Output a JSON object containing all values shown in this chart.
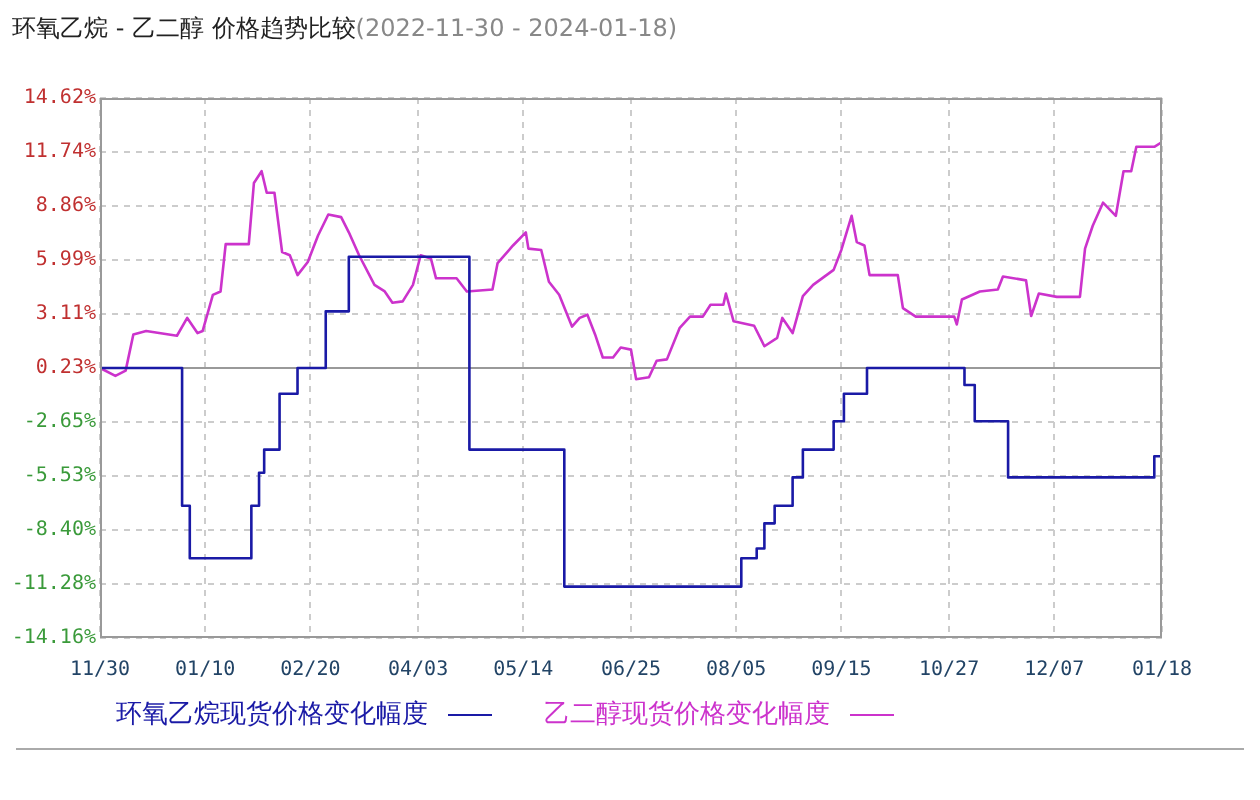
{
  "chart_data": {
    "type": "line",
    "title": "环氧乙烷 - 乙二醇 价格趋势比较",
    "subtitle": "(2022-11-30 - 2024-01-18)",
    "xlim": [
      "2022-11-30",
      "2024-01-18"
    ],
    "xticks": [
      {
        "value": "2022-11-30",
        "label": "11/30"
      },
      {
        "value": "2023-01-10",
        "label": "01/10"
      },
      {
        "value": "2023-02-20",
        "label": "02/20"
      },
      {
        "value": "2023-04-03",
        "label": "04/03"
      },
      {
        "value": "2023-05-14",
        "label": "05/14"
      },
      {
        "value": "2023-06-25",
        "label": "06/25"
      },
      {
        "value": "2023-08-05",
        "label": "08/05"
      },
      {
        "value": "2023-09-15",
        "label": "09/15"
      },
      {
        "value": "2023-10-27",
        "label": "10/27"
      },
      {
        "value": "2023-12-07",
        "label": "12/07"
      },
      {
        "value": "2024-01-18",
        "label": "01/18"
      }
    ],
    "ylim": [
      -14.16,
      14.62
    ],
    "yticks": [
      {
        "value": -14.16,
        "label": "-14.16%"
      },
      {
        "value": -11.28,
        "label": "-11.28%"
      },
      {
        "value": -8.4,
        "label": "-8.40%"
      },
      {
        "value": -5.53,
        "label": "-5.53%"
      },
      {
        "value": -2.65,
        "label": "-2.65%"
      },
      {
        "value": 0.23,
        "label": "0.23%"
      },
      {
        "value": 3.11,
        "label": "3.11%"
      },
      {
        "value": 5.99,
        "label": "5.99%"
      },
      {
        "value": 8.86,
        "label": "8.86%"
      },
      {
        "value": 11.74,
        "label": "11.74%"
      },
      {
        "value": 14.62,
        "label": "14.62%"
      }
    ],
    "grid": true,
    "legend": "bottom",
    "ref_lines": [
      {
        "axis": "y",
        "value": 0.23,
        "color": "#999999"
      }
    ],
    "series": [
      {
        "name": "环氧乙烷现货价格变化幅度",
        "type": "step",
        "color": "#1a1aa6",
        "x": [
          "2022-11-30",
          "2023-01-01",
          "2023-01-04",
          "2023-01-28",
          "2023-01-31",
          "2023-02-02",
          "2023-02-08",
          "2023-02-15",
          "2023-02-26",
          "2023-03-07",
          "2023-04-23",
          "2023-05-30",
          "2023-08-07",
          "2023-08-13",
          "2023-08-16",
          "2023-08-20",
          "2023-08-27",
          "2023-08-31",
          "2023-09-12",
          "2023-09-16",
          "2023-09-25",
          "2023-11-02",
          "2023-11-06",
          "2023-11-19",
          "2024-01-15",
          "2024-01-18"
        ],
        "values": [
          0.23,
          -7.11,
          -9.91,
          -7.11,
          -5.35,
          -4.12,
          -1.14,
          0.23,
          3.25,
          6.16,
          -4.12,
          -11.42,
          -9.91,
          -9.39,
          -8.05,
          -7.11,
          -5.6,
          -4.12,
          -2.61,
          -1.14,
          0.23,
          -0.68,
          -2.61,
          -5.6,
          -4.47,
          -4.02
        ]
      },
      {
        "name": "乙二醇现货价格变化幅度",
        "type": "line",
        "color": "#cc33cc",
        "x": [
          "2022-11-30",
          "2022-12-06",
          "2022-12-10",
          "2022-12-13",
          "2022-12-18",
          "2022-12-30",
          "2023-01-03",
          "2023-01-07",
          "2023-01-09",
          "2023-01-13",
          "2023-01-16",
          "2023-01-18",
          "2023-01-27",
          "2023-01-29",
          "2023-02-01",
          "2023-02-03",
          "2023-02-06",
          "2023-02-09",
          "2023-02-12",
          "2023-02-15",
          "2023-02-19",
          "2023-02-23",
          "2023-02-27",
          "2023-03-04",
          "2023-03-07",
          "2023-03-11",
          "2023-03-17",
          "2023-03-21",
          "2023-03-24",
          "2023-03-28",
          "2023-04-01",
          "2023-04-04",
          "2023-04-08",
          "2023-04-10",
          "2023-04-18",
          "2023-04-22",
          "2023-05-02",
          "2023-05-04",
          "2023-05-10",
          "2023-05-15",
          "2023-05-16",
          "2023-05-21",
          "2023-05-24",
          "2023-05-28",
          "2023-06-02",
          "2023-06-05",
          "2023-06-08",
          "2023-06-11",
          "2023-06-14",
          "2023-06-18",
          "2023-06-21",
          "2023-06-25",
          "2023-06-27",
          "2023-07-02",
          "2023-07-05",
          "2023-07-09",
          "2023-07-14",
          "2023-07-18",
          "2023-07-23",
          "2023-07-26",
          "2023-07-31",
          "2023-08-01",
          "2023-08-04",
          "2023-08-12",
          "2023-08-16",
          "2023-08-21",
          "2023-08-23",
          "2023-08-27",
          "2023-08-31",
          "2023-09-04",
          "2023-09-12",
          "2023-09-15",
          "2023-09-19",
          "2023-09-21",
          "2023-09-24",
          "2023-09-26",
          "2023-10-07",
          "2023-10-09",
          "2023-10-14",
          "2023-10-29",
          "2023-10-30",
          "2023-11-01",
          "2023-11-08",
          "2023-11-15",
          "2023-11-17",
          "2023-11-26",
          "2023-11-28",
          "2023-12-01",
          "2023-12-08",
          "2023-12-17",
          "2023-12-19",
          "2023-12-22",
          "2023-12-26",
          "2023-12-31",
          "2024-01-03",
          "2024-01-06",
          "2024-01-08",
          "2024-01-15",
          "2024-01-18"
        ],
        "values": [
          0.23,
          -0.19,
          0.09,
          2.02,
          2.2,
          1.95,
          2.9,
          2.09,
          2.2,
          4.13,
          4.31,
          6.83,
          6.83,
          10.09,
          10.72,
          9.57,
          9.57,
          6.41,
          6.24,
          5.18,
          5.88,
          7.29,
          8.41,
          8.27,
          7.46,
          6.24,
          4.66,
          4.31,
          3.71,
          3.78,
          4.66,
          6.24,
          6.06,
          5.01,
          5.01,
          4.31,
          4.41,
          5.82,
          6.76,
          7.46,
          6.59,
          6.52,
          4.83,
          4.13,
          2.44,
          2.9,
          3.07,
          2.02,
          0.79,
          0.79,
          1.32,
          1.21,
          -0.37,
          -0.26,
          0.62,
          0.69,
          2.37,
          2.97,
          2.97,
          3.6,
          3.6,
          4.2,
          2.72,
          2.48,
          1.39,
          1.84,
          2.9,
          2.09,
          4.06,
          4.66,
          5.46,
          6.52,
          8.34,
          6.94,
          6.76,
          5.18,
          5.18,
          3.42,
          2.97,
          2.97,
          2.55,
          3.88,
          4.31,
          4.41,
          5.11,
          4.9,
          3.0,
          4.2,
          4.02,
          4.02,
          6.59,
          7.81,
          9.04,
          8.34,
          10.72,
          10.72,
          12.02,
          12.02,
          12.27
        ]
      }
    ]
  }
}
